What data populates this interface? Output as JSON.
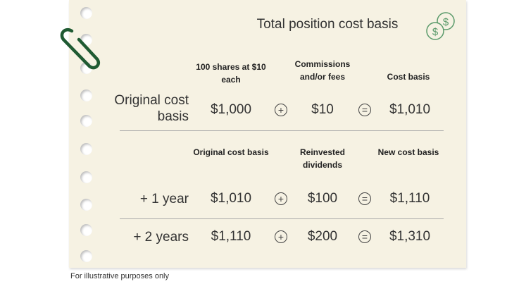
{
  "title": "Total position cost basis",
  "section1": {
    "headers": [
      "100 shares at $10 each",
      "Commissions and/or fees",
      "Cost basis"
    ],
    "rows": [
      {
        "label": "Original cost basis",
        "values": [
          "$1,000",
          "$10",
          "$1,010"
        ]
      }
    ]
  },
  "section2": {
    "headers": [
      "Original cost basis",
      "Reinvested dividends",
      "New cost basis"
    ],
    "rows": [
      {
        "label": "+ 1 year",
        "values": [
          "$1,010",
          "$100",
          "$1,110"
        ]
      },
      {
        "label": "+ 2 years",
        "values": [
          "$1,110",
          "$200",
          "$1,310"
        ]
      }
    ]
  },
  "operators": {
    "plus": "+",
    "equals": "="
  },
  "footnote": "For illustrative purposes only",
  "icons": [
    "paperclip-icon",
    "dollar-coins-icon"
  ],
  "colors": {
    "paper": "#f6f2e3",
    "accent": "#1f5a32",
    "coin": "#5a9a6a"
  }
}
